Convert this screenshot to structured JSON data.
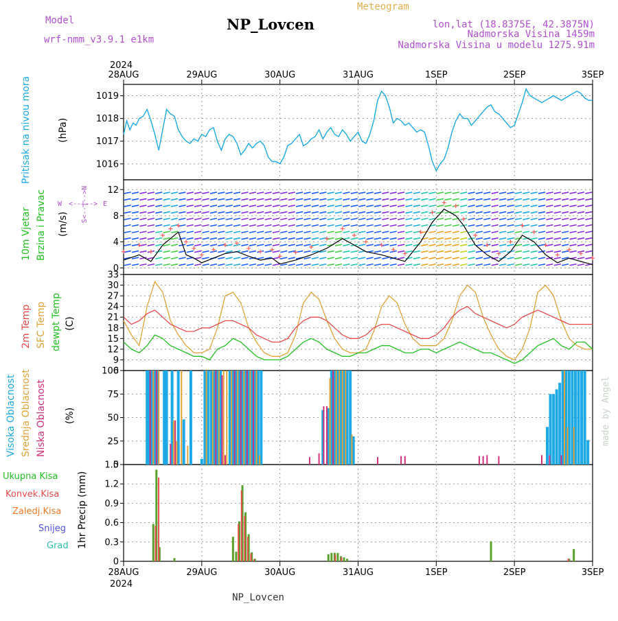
{
  "header": {
    "model_label": "Model",
    "model_name": "wrf-nmm_v3.9.1 e1km",
    "title": "NP_Lovcen",
    "subtitle": "Meteogram",
    "lonlat": "lon,lat (18.8375E, 42.3875N)",
    "elevation": "Nadmorska Visina 1459m",
    "model_elevation": "Nadmorska Visina u modelu 1275.91m",
    "footer": "NP_Lovcen",
    "credit": "made by Angel"
  },
  "time_axis": {
    "year": "2024",
    "labels": [
      "28AUG",
      "29AUG",
      "30AUG",
      "31AUG",
      "1SEP",
      "2SEP",
      "3SEP"
    ],
    "days": 6
  },
  "colors": {
    "pressure": "#1ca9e6",
    "temp": "#e84a4a",
    "sfc_temp": "#e0a33a",
    "dewpt": "#22c022",
    "wind_speed": "#000000",
    "gust": "#ff5a5a",
    "cloud_high": "#1ca9e6",
    "cloud_mid": "#e0a33a",
    "cloud_low": "#d0307a",
    "precip_total": "#5aa02c",
    "precip_conv": "#e84a4a",
    "precip_frz": "#f07a2a",
    "snow": "#5050e0",
    "graupel": "#30c0b0",
    "wind_dir_label": "#b050d0"
  },
  "chart_data": [
    {
      "type": "line",
      "panel": "pressure",
      "ylabel": "Pritisak na nivou mora",
      "unit": "(hPa)",
      "ylim": [
        1015.3,
        1019.5
      ],
      "yticks": [
        1016,
        1017,
        1018,
        1019
      ],
      "x": [
        0,
        0.04,
        0.08,
        0.12,
        0.16,
        0.2,
        0.25,
        0.3,
        0.35,
        0.4,
        0.45,
        0.5,
        0.55,
        0.6,
        0.65,
        0.7,
        0.75,
        0.8,
        0.85,
        0.9,
        0.95,
        1.0,
        1.05,
        1.1,
        1.15,
        1.2,
        1.25,
        1.3,
        1.35,
        1.4,
        1.45,
        1.5,
        1.55,
        1.6,
        1.65,
        1.7,
        1.75,
        1.8,
        1.85,
        1.9,
        1.95,
        2.0,
        2.05,
        2.1,
        2.15,
        2.2,
        2.25,
        2.3,
        2.35,
        2.4,
        2.45,
        2.5,
        2.55,
        2.6,
        2.65,
        2.7,
        2.75,
        2.8,
        2.85,
        2.9,
        2.95,
        3.0,
        3.05,
        3.1,
        3.15,
        3.2,
        3.25,
        3.3,
        3.35,
        3.4,
        3.45,
        3.5,
        3.55,
        3.6,
        3.65,
        3.7,
        3.75,
        3.8,
        3.85,
        3.9,
        3.95,
        4.0,
        4.05,
        4.1,
        4.15,
        4.2,
        4.25,
        4.3,
        4.35,
        4.4,
        4.45,
        4.5,
        4.55,
        4.6,
        4.65,
        4.7,
        4.75,
        4.8,
        4.85,
        4.9,
        4.95,
        5.0,
        5.05,
        5.1,
        5.15,
        5.2,
        5.25,
        5.3,
        5.35,
        5.4,
        5.45,
        5.5,
        5.55,
        5.6,
        5.65,
        5.7,
        5.75,
        5.8,
        5.85,
        5.9,
        5.95,
        6.0
      ],
      "series": [
        {
          "values": [
            1017.3,
            1017.9,
            1017.5,
            1017.8,
            1017.7,
            1018.0,
            1018.1,
            1018.4,
            1017.9,
            1017.3,
            1016.6,
            1017.5,
            1018.4,
            1018.2,
            1018.1,
            1017.5,
            1017.2,
            1017.0,
            1016.9,
            1017.1,
            1017.0,
            1017.3,
            1017.2,
            1017.5,
            1017.6,
            1017.0,
            1016.6,
            1017.1,
            1017.3,
            1017.2,
            1016.9,
            1016.4,
            1016.6,
            1016.9,
            1016.7,
            1016.9,
            1017.0,
            1016.8,
            1016.3,
            1016.1,
            1016.1,
            1016.0,
            1016.3,
            1016.8,
            1016.9,
            1017.1,
            1017.3,
            1016.8,
            1016.9,
            1017.1,
            1017.2,
            1017.5,
            1017.1,
            1017.4,
            1017.6,
            1017.3,
            1017.2,
            1017.5,
            1017.3,
            1017.0,
            1017.2,
            1017.4,
            1017.0,
            1016.9,
            1017.3,
            1017.9,
            1018.8,
            1019.2,
            1019.0,
            1018.5,
            1017.8,
            1018.0,
            1017.9,
            1017.7,
            1017.8,
            1017.6,
            1017.4,
            1017.5,
            1017.4,
            1016.8,
            1016.1,
            1015.7,
            1016.0,
            1016.2,
            1016.7,
            1017.4,
            1017.9,
            1018.2,
            1018.0,
            1018.0,
            1017.7,
            1017.9,
            1018.1,
            1018.3,
            1018.5,
            1018.6,
            1018.3,
            1018.2,
            1018.0,
            1017.8,
            1017.6,
            1017.7,
            1018.2,
            1018.7,
            1019.3,
            1019.0,
            1018.9,
            1018.8,
            1018.7,
            1018.8,
            1018.9,
            1019.0,
            1018.9,
            1018.8,
            1018.9,
            1019.0,
            1019.1,
            1019.2,
            1019.1,
            1018.9,
            1018.8,
            1018.8
          ]
        }
      ]
    },
    {
      "type": "line",
      "panel": "wind",
      "ylabel": [
        "10m Vjetar",
        "Brzina i Pravac"
      ],
      "unit": "(m/s)",
      "direction_legend": [
        "W",
        "<--|-->",
        "E",
        "S<--|-->N"
      ],
      "ylim": [
        -1,
        13.5
      ],
      "yticks": [
        0,
        4,
        8,
        12
      ],
      "x": [
        0,
        0.2,
        0.35,
        0.5,
        0.6,
        0.7,
        0.8,
        0.9,
        1.0,
        1.15,
        1.3,
        1.45,
        1.6,
        1.75,
        1.9,
        2.0,
        2.2,
        2.4,
        2.6,
        2.8,
        2.95,
        3.1,
        3.3,
        3.45,
        3.6,
        3.8,
        3.95,
        4.1,
        4.25,
        4.35,
        4.5,
        4.65,
        4.8,
        4.95,
        5.1,
        5.25,
        5.4,
        5.55,
        5.7,
        5.85,
        6.0
      ],
      "series": [
        {
          "name": "speed",
          "values": [
            1.2,
            2.0,
            1.0,
            3.5,
            4.5,
            5.5,
            2.0,
            1.5,
            0.8,
            1.5,
            2.2,
            2.5,
            1.8,
            1.2,
            1.5,
            0.6,
            1.2,
            2.0,
            3.0,
            4.5,
            3.5,
            2.5,
            2.0,
            1.5,
            1.0,
            4.0,
            7.0,
            9.0,
            8.0,
            6.5,
            3.5,
            2.0,
            1.0,
            2.5,
            5.0,
            4.0,
            2.0,
            0.8,
            1.5,
            1.0,
            0.5
          ]
        },
        {
          "name": "gust",
          "values": [
            2.5,
            3.5,
            2.5,
            5.0,
            6.0,
            6.5,
            4.0,
            3.0,
            2.0,
            2.8,
            3.5,
            3.8,
            3.0,
            2.5,
            2.8,
            1.8,
            2.4,
            3.2,
            4.5,
            6.0,
            5.0,
            4.0,
            3.5,
            2.8,
            2.2,
            5.5,
            8.5,
            10.0,
            9.5,
            7.5,
            5.0,
            3.5,
            2.2,
            4.0,
            6.5,
            5.5,
            3.5,
            2.0,
            2.8,
            2.2,
            1.5
          ]
        }
      ]
    },
    {
      "type": "line",
      "panel": "temperature",
      "ylabel": [
        "2m Temp",
        "SFC Temp",
        "dewpt Temp"
      ],
      "unit": "(C)",
      "ylim": [
        6,
        33
      ],
      "yticks": [
        6,
        9,
        12,
        15,
        18,
        21,
        24,
        27,
        30,
        33
      ],
      "x": [
        0,
        0.1,
        0.2,
        0.3,
        0.4,
        0.5,
        0.6,
        0.7,
        0.8,
        0.9,
        1.0,
        1.1,
        1.2,
        1.3,
        1.4,
        1.5,
        1.6,
        1.7,
        1.8,
        1.9,
        2.0,
        2.1,
        2.2,
        2.3,
        2.4,
        2.5,
        2.6,
        2.7,
        2.8,
        2.9,
        3.0,
        3.1,
        3.2,
        3.3,
        3.4,
        3.5,
        3.6,
        3.7,
        3.8,
        3.9,
        4.0,
        4.1,
        4.2,
        4.3,
        4.4,
        4.5,
        4.6,
        4.7,
        4.8,
        4.9,
        5.0,
        5.1,
        5.2,
        5.3,
        5.4,
        5.5,
        5.6,
        5.7,
        5.8,
        5.9,
        6.0
      ],
      "series": [
        {
          "name": "2m Temp",
          "values": [
            21,
            19,
            20,
            22,
            23,
            21,
            19,
            18,
            17,
            17,
            18,
            18,
            19,
            20,
            20,
            19,
            18,
            16,
            15,
            14,
            14,
            15,
            18,
            20,
            21,
            21,
            20,
            18,
            16,
            15,
            15,
            16,
            18,
            19,
            19,
            18,
            17,
            16,
            15,
            15,
            16,
            18,
            21,
            23,
            24,
            22,
            21,
            20,
            19,
            18,
            19,
            21,
            22,
            23,
            22,
            21,
            20,
            19,
            19,
            19,
            19
          ]
        },
        {
          "name": "SFC Temp",
          "values": [
            20,
            16,
            13,
            24,
            31,
            28,
            20,
            16,
            13,
            11,
            11,
            12,
            18,
            27,
            28,
            25,
            18,
            14,
            11,
            10,
            10,
            11,
            16,
            25,
            28,
            26,
            20,
            15,
            12,
            11,
            11,
            12,
            17,
            24,
            27,
            25,
            19,
            15,
            13,
            13,
            13,
            15,
            20,
            27,
            30,
            28,
            21,
            16,
            12,
            10,
            9,
            12,
            18,
            28,
            30,
            27,
            20,
            15,
            13,
            12,
            12
          ]
        },
        {
          "name": "dewpt Temp",
          "values": [
            14,
            12,
            11,
            13,
            16,
            15,
            13,
            12,
            11,
            10,
            10,
            9,
            12,
            13,
            15,
            14,
            12,
            10,
            9,
            9,
            9,
            10,
            12,
            14,
            15,
            14,
            12,
            11,
            10,
            10,
            11,
            11,
            12,
            13,
            13,
            12,
            11,
            11,
            12,
            12,
            11,
            12,
            13,
            14,
            13,
            12,
            11,
            11,
            10,
            9,
            8,
            9,
            11,
            13,
            14,
            15,
            13,
            12,
            14,
            14,
            12
          ]
        }
      ]
    },
    {
      "type": "bar",
      "panel": "clouds",
      "ylabel": [
        "Visoka Oblacnost",
        "Srednja Oblacnost",
        "Niska Oblacnost"
      ],
      "unit": "(%)",
      "ylim": [
        0,
        100
      ],
      "yticks": [
        0,
        25,
        50,
        75,
        100
      ],
      "series": [
        {
          "name": "Visoka Oblacnost",
          "x": [
            0.3,
            0.33,
            0.36,
            0.4,
            0.43,
            0.52,
            0.55,
            0.62,
            0.7,
            0.77,
            0.86,
            1.0,
            1.04,
            1.08,
            1.12,
            1.16,
            1.2,
            1.24,
            1.36,
            1.4,
            1.44,
            1.48,
            1.52,
            1.56,
            1.6,
            1.64,
            1.68,
            1.72,
            1.76,
            2.55,
            2.62,
            2.66,
            2.7,
            2.74,
            2.78,
            2.82,
            2.86,
            2.9,
            2.94,
            5.42,
            5.46,
            5.5,
            5.54,
            5.58,
            5.62,
            5.66,
            5.7,
            5.74,
            5.78,
            5.82,
            5.86,
            5.9,
            5.94
          ],
          "values": [
            100,
            100,
            100,
            100,
            100,
            100,
            100,
            100,
            100,
            48,
            100,
            6,
            100,
            100,
            100,
            100,
            100,
            100,
            100,
            100,
            100,
            100,
            100,
            100,
            100,
            100,
            100,
            100,
            100,
            58,
            60,
            100,
            100,
            100,
            100,
            100,
            100,
            100,
            30,
            40,
            75,
            75,
            80,
            87,
            100,
            100,
            100,
            100,
            100,
            100,
            100,
            100,
            26
          ]
        },
        {
          "name": "Srednja Oblacnost",
          "x": [
            0.38,
            0.45,
            0.64,
            0.68,
            0.74,
            0.82,
            1.06,
            1.14,
            1.22,
            1.28,
            1.32,
            1.38,
            1.46,
            1.54,
            1.62,
            1.7,
            1.74,
            2.64,
            2.72,
            2.76,
            2.8,
            2.84,
            2.92,
            5.64,
            5.68,
            5.76
          ],
          "values": [
            100,
            100,
            47,
            25,
            100,
            20,
            100,
            100,
            100,
            100,
            100,
            100,
            100,
            100,
            100,
            100,
            10,
            92,
            100,
            100,
            100,
            100,
            32,
            100,
            40,
            40
          ]
        },
        {
          "name": "Niska Oblacnost",
          "x": [
            0.34,
            0.42,
            0.6,
            0.66,
            1.18,
            1.26,
            1.3,
            1.42,
            1.5,
            1.58,
            1.66,
            2.38,
            2.5,
            2.56,
            2.6,
            2.68,
            3.25,
            3.55,
            3.6,
            4.55,
            4.6,
            4.65,
            4.8,
            5.35,
            5.45,
            5.6
          ],
          "values": [
            100,
            100,
            22,
            47,
            100,
            95,
            10,
            100,
            100,
            100,
            100,
            8,
            12,
            62,
            62,
            100,
            8,
            9,
            9,
            9,
            9,
            10,
            9,
            10,
            10,
            10
          ]
        }
      ]
    },
    {
      "type": "bar",
      "panel": "precipitation",
      "ylabel": "1hr Precip (mm)",
      "legend": [
        "Ukupna Kisa",
        "Konvek.Kisa",
        "Zaledj.Kisa",
        "Snijeg",
        "Grad"
      ],
      "ylim": [
        0,
        1.5
      ],
      "yticks": [
        0,
        0.3,
        0.6,
        0.9,
        1.2,
        1.5
      ],
      "series": [
        {
          "name": "Ukupna Kisa",
          "x": [
            0.38,
            0.42,
            0.46,
            0.65,
            1.4,
            1.44,
            1.48,
            1.52,
            1.56,
            1.6,
            1.64,
            1.68,
            2.62,
            2.66,
            2.7,
            2.74,
            2.78,
            2.82,
            2.86,
            4.7,
            5.7,
            5.76
          ],
          "values": [
            0.58,
            1.42,
            0.22,
            0.05,
            0.38,
            0.15,
            0.62,
            1.18,
            0.76,
            0.42,
            0.14,
            0.04,
            0.11,
            0.13,
            0.13,
            0.13,
            0.08,
            0.06,
            0.04,
            0.31,
            0.04,
            0.19
          ]
        },
        {
          "name": "Konvek.Kisa",
          "x": [
            0.4,
            0.44,
            1.46,
            1.5,
            1.54,
            1.58,
            1.62,
            1.66,
            2.7,
            2.78,
            5.68
          ],
          "values": [
            0.55,
            1.3,
            0.58,
            1.1,
            0.7,
            0.38,
            0.12,
            0.03,
            0.1,
            0.06,
            0.04
          ]
        }
      ]
    }
  ]
}
